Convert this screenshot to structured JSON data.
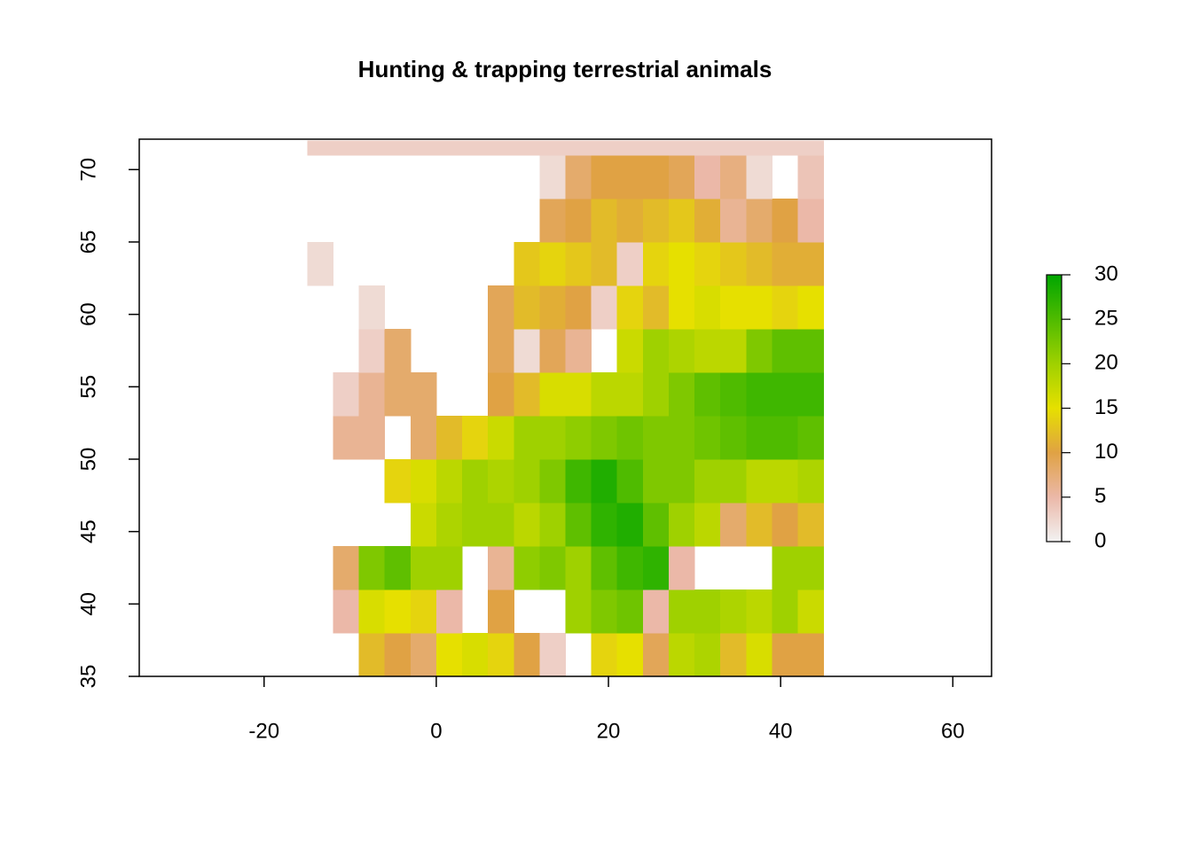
{
  "chart_data": {
    "type": "heatmap",
    "title": "Hunting & trapping terrestrial animals",
    "xlim": [
      -34.5,
      64.5
    ],
    "ylim": [
      35,
      72.1
    ],
    "xticks": [
      -20,
      0,
      20,
      40,
      60
    ],
    "yticks": [
      35,
      40,
      45,
      50,
      55,
      60,
      65,
      70
    ],
    "xbins": [
      -15,
      -12,
      -9,
      -6,
      -3,
      0,
      3,
      6,
      9,
      12,
      15,
      18,
      21,
      24,
      27,
      30,
      33,
      36,
      39,
      42,
      45
    ],
    "ybins": [
      35,
      38,
      41,
      44,
      47,
      50,
      53,
      56,
      59,
      62,
      65,
      68,
      71,
      72
    ],
    "z": [
      [
        null,
        null,
        12,
        10,
        8,
        15,
        16,
        14,
        10,
        3,
        null,
        14,
        15,
        9,
        18,
        19,
        12,
        16,
        10,
        10
      ],
      [
        null,
        5,
        16,
        15,
        14,
        5,
        null,
        10,
        null,
        null,
        20,
        22,
        23,
        5,
        20,
        20,
        19,
        18,
        20,
        17
      ],
      [
        null,
        8,
        22,
        24,
        20,
        20,
        null,
        6,
        21,
        22,
        20,
        24,
        26,
        27,
        5,
        null,
        null,
        null,
        20,
        20
      ],
      [
        null,
        null,
        null,
        null,
        17,
        19,
        20,
        20,
        18,
        20,
        24,
        27,
        28,
        24,
        20,
        18,
        8,
        12,
        10,
        12
      ],
      [
        null,
        null,
        null,
        14,
        16,
        18,
        20,
        19,
        20,
        22,
        26,
        28,
        25,
        22,
        22,
        20,
        20,
        18,
        18,
        19
      ],
      [
        null,
        6,
        6,
        null,
        8,
        12,
        14,
        17,
        20,
        20,
        21,
        22,
        23,
        22,
        22,
        23,
        24,
        25,
        25,
        24
      ],
      [
        null,
        3,
        6,
        8,
        8,
        null,
        null,
        10,
        12,
        16,
        16,
        18,
        18,
        20,
        22,
        24,
        25,
        26,
        26,
        26
      ],
      [
        null,
        null,
        3,
        8,
        null,
        null,
        null,
        9,
        2,
        9,
        6,
        null,
        17,
        20,
        19,
        18,
        18,
        22,
        24,
        24
      ],
      [
        null,
        null,
        2,
        null,
        null,
        null,
        null,
        9,
        12,
        11,
        10,
        3,
        14,
        12,
        15,
        16,
        15,
        15,
        14,
        15
      ],
      [
        2,
        null,
        null,
        null,
        null,
        null,
        null,
        null,
        13,
        14,
        13,
        12,
        3,
        14,
        15,
        14,
        13,
        12,
        11,
        11
      ],
      [
        null,
        null,
        null,
        null,
        null,
        null,
        null,
        null,
        null,
        9,
        10,
        12,
        11,
        12,
        13,
        11,
        6,
        8,
        10,
        5
      ],
      [
        null,
        null,
        null,
        null,
        null,
        null,
        null,
        null,
        null,
        2,
        8,
        10,
        10,
        10,
        9,
        5,
        7,
        2,
        null,
        4
      ],
      [
        3,
        3,
        3,
        3,
        3,
        3,
        3,
        3,
        3,
        3,
        3,
        3,
        3,
        3,
        3,
        3,
        3,
        3,
        3,
        3
      ]
    ],
    "colorscale": [
      [
        0,
        "#f2f2f2"
      ],
      [
        5,
        "#ebb8a8"
      ],
      [
        10,
        "#e0a244"
      ],
      [
        15,
        "#e6e000"
      ],
      [
        20,
        "#9fd100"
      ],
      [
        25,
        "#4fbb00"
      ],
      [
        30,
        "#00a600"
      ]
    ],
    "colorbar": {
      "lim": [
        0,
        30
      ],
      "ticks": [
        0,
        5,
        10,
        15,
        20,
        25,
        30
      ]
    }
  }
}
